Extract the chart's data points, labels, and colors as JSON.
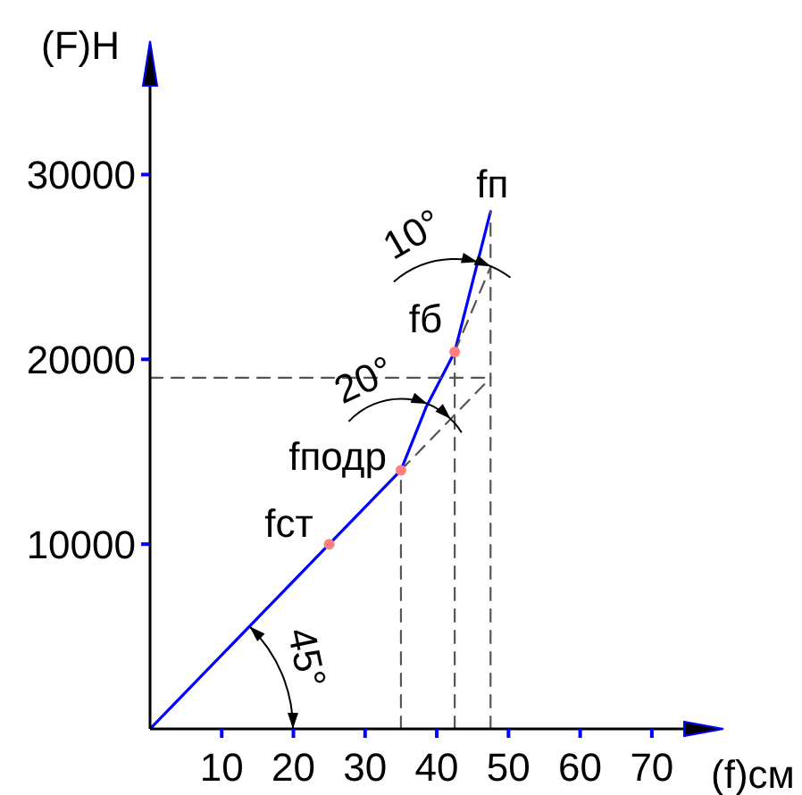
{
  "chart_data": {
    "type": "line",
    "xlabel": "(f)см",
    "ylabel": "(F)Н",
    "xlim": [
      0,
      75
    ],
    "ylim": [
      0,
      35000
    ],
    "xticks": [
      10,
      20,
      30,
      40,
      50,
      60,
      70
    ],
    "yticks": [
      10000,
      20000,
      30000
    ],
    "series": [
      {
        "type": "line",
        "color": "#0000ff",
        "line_style": "solid",
        "x": [
          0,
          25,
          35,
          38.5,
          42.5,
          47.5
        ],
        "values": [
          0,
          10000,
          14000,
          17400,
          20400,
          28000
        ]
      },
      {
        "type": "line",
        "color": "#555555",
        "line_style": "dashed",
        "x": [
          0,
          47.5
        ],
        "values": [
          19000,
          19000
        ]
      },
      {
        "type": "line",
        "color": "#555555",
        "line_style": "dashed",
        "x": [
          35,
          35
        ],
        "values": [
          0,
          14000
        ]
      },
      {
        "type": "line",
        "color": "#555555",
        "line_style": "dashed",
        "x": [
          42.5,
          42.5
        ],
        "values": [
          0,
          20400
        ]
      },
      {
        "type": "line",
        "color": "#555555",
        "line_style": "dashed",
        "x": [
          47.5,
          47.5
        ],
        "values": [
          0,
          28000
        ]
      },
      {
        "type": "line",
        "color": "#555555",
        "line_style": "dashed",
        "x": [
          35,
          47.5
        ],
        "values": [
          14000,
          19000
        ]
      },
      {
        "type": "line",
        "color": "#555555",
        "line_style": "dashed",
        "x": [
          42.5,
          47.5
        ],
        "values": [
          20400,
          25000
        ]
      },
      {
        "type": "scatter",
        "color": "#ff7f7f",
        "marker": "circle",
        "x": [
          25,
          35,
          42.5
        ],
        "values": [
          10000,
          14000,
          20400
        ]
      }
    ],
    "annotations": [
      {
        "text": "fст",
        "x": 25,
        "y": 10000
      },
      {
        "text": "fподр",
        "x": 35,
        "y": 14000
      },
      {
        "text": "fб",
        "x": 42.5,
        "y": 20400
      },
      {
        "text": "fп",
        "x": 47.5,
        "y": 28000
      },
      {
        "text": "45°",
        "x": 14,
        "y": 5600
      },
      {
        "text": "20°",
        "x": 38,
        "y": 17000
      },
      {
        "text": "10°",
        "x": 45,
        "y": 24200
      }
    ]
  }
}
